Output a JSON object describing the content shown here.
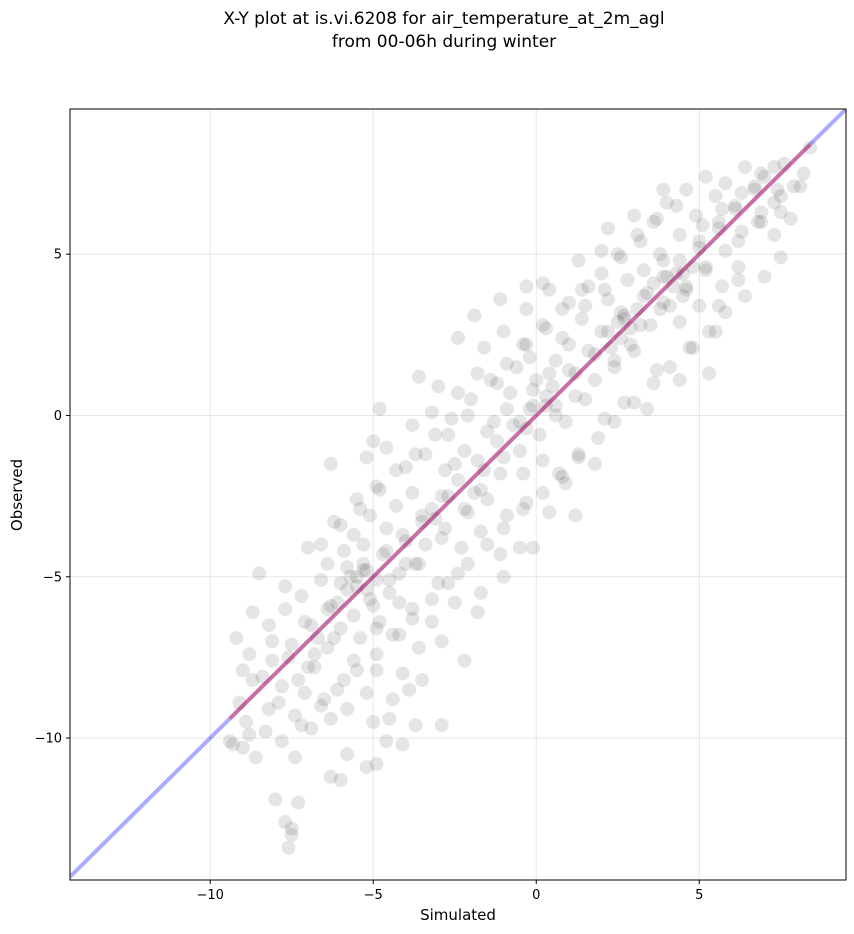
{
  "chart_data": {
    "type": "scatter",
    "title": "X-Y plot at is.vi.6208 for air_temperature_at_2m_agl",
    "subtitle": "from 00-06h during winter",
    "xlabel": "Simulated",
    "ylabel": "Observed",
    "xlim": [
      -14.3,
      9.5
    ],
    "ylim": [
      -14.4,
      9.5
    ],
    "xticks": [
      -10,
      -5,
      0,
      5
    ],
    "yticks": [
      -10,
      -5,
      0,
      5
    ],
    "xtick_labels": [
      "−10",
      "−5",
      "0",
      "5"
    ],
    "ytick_labels": [
      "−10",
      "−5",
      "0",
      "5"
    ],
    "grid": true,
    "reference_line": {
      "slope": 1,
      "intercept": 0,
      "color": "#0000ff"
    },
    "fit_line": {
      "slope": 1.0,
      "intercept": 0.0,
      "x_range": [
        -9.4,
        8.4
      ],
      "color": "#ff0000"
    },
    "point_color": "#000000",
    "points": [
      [
        -7.6,
        -13.4
      ],
      [
        -7.5,
        -13.0
      ],
      [
        -7.7,
        -12.6
      ],
      [
        -7.3,
        -12.0
      ],
      [
        -8.0,
        -11.9
      ],
      [
        -7.5,
        -12.8
      ],
      [
        -6.3,
        -11.2
      ],
      [
        -6.0,
        -11.3
      ],
      [
        -5.2,
        -10.9
      ],
      [
        -4.9,
        -10.8
      ],
      [
        -5.8,
        -10.5
      ],
      [
        -7.4,
        -10.6
      ],
      [
        -8.6,
        -10.6
      ],
      [
        -9.3,
        -10.2
      ],
      [
        -8.8,
        -9.9
      ],
      [
        -4.6,
        -10.1
      ],
      [
        -4.1,
        -10.2
      ],
      [
        -3.7,
        -9.6
      ],
      [
        -2.9,
        -9.6
      ],
      [
        -8.9,
        -9.5
      ],
      [
        -9.1,
        -8.9
      ],
      [
        -8.2,
        -9.1
      ],
      [
        -7.4,
        -9.3
      ],
      [
        -6.9,
        -9.7
      ],
      [
        -6.3,
        -9.4
      ],
      [
        -5.8,
        -9.1
      ],
      [
        -5.0,
        -9.5
      ],
      [
        -4.5,
        -9.4
      ],
      [
        -9.0,
        -7.9
      ],
      [
        -8.4,
        -8.1
      ],
      [
        -7.8,
        -8.4
      ],
      [
        -7.1,
        -8.6
      ],
      [
        -6.5,
        -8.8
      ],
      [
        -5.9,
        -8.2
      ],
      [
        -5.2,
        -8.6
      ],
      [
        -4.4,
        -8.8
      ],
      [
        -3.9,
        -8.5
      ],
      [
        -9.2,
        -6.9
      ],
      [
        -8.8,
        -7.4
      ],
      [
        -8.1,
        -7.0
      ],
      [
        -7.6,
        -7.5
      ],
      [
        -7.0,
        -7.8
      ],
      [
        -6.4,
        -7.2
      ],
      [
        -5.6,
        -7.6
      ],
      [
        -4.9,
        -7.9
      ],
      [
        -4.1,
        -8.0
      ],
      [
        -3.5,
        -8.2
      ],
      [
        -8.7,
        -6.1
      ],
      [
        -8.2,
        -6.5
      ],
      [
        -7.7,
        -6.0
      ],
      [
        -7.1,
        -6.4
      ],
      [
        -6.7,
        -6.9
      ],
      [
        -6.0,
        -6.6
      ],
      [
        -5.4,
        -6.9
      ],
      [
        -4.8,
        -6.4
      ],
      [
        -4.2,
        -6.8
      ],
      [
        -3.6,
        -7.2
      ],
      [
        -2.9,
        -7.0
      ],
      [
        -2.2,
        -7.6
      ],
      [
        -8.5,
        -4.9
      ],
      [
        -7.7,
        -5.3
      ],
      [
        -7.2,
        -5.6
      ],
      [
        -6.6,
        -5.1
      ],
      [
        -6.1,
        -5.8
      ],
      [
        -5.5,
        -5.3
      ],
      [
        -5.0,
        -5.9
      ],
      [
        -4.5,
        -5.5
      ],
      [
        -3.8,
        -6.0
      ],
      [
        -3.2,
        -6.4
      ],
      [
        -2.5,
        -5.8
      ],
      [
        -1.8,
        -6.1
      ],
      [
        -7.0,
        -4.1
      ],
      [
        -6.4,
        -4.6
      ],
      [
        -5.9,
        -4.2
      ],
      [
        -5.3,
        -4.8
      ],
      [
        -4.7,
        -4.3
      ],
      [
        -4.2,
        -4.9
      ],
      [
        -3.6,
        -4.6
      ],
      [
        -3.0,
        -5.2
      ],
      [
        -2.4,
        -4.9
      ],
      [
        -1.7,
        -5.5
      ],
      [
        -1.0,
        -5.0
      ],
      [
        -6.2,
        -3.3
      ],
      [
        -5.6,
        -3.7
      ],
      [
        -5.1,
        -3.1
      ],
      [
        -4.6,
        -3.5
      ],
      [
        -4.0,
        -3.9
      ],
      [
        -3.5,
        -3.3
      ],
      [
        -2.9,
        -3.8
      ],
      [
        -2.3,
        -4.1
      ],
      [
        -1.7,
        -3.6
      ],
      [
        -1.1,
        -4.3
      ],
      [
        -0.5,
        -4.1
      ],
      [
        -0.1,
        -4.1
      ],
      [
        -5.5,
        -2.6
      ],
      [
        -4.9,
        -2.2
      ],
      [
        -4.3,
        -2.8
      ],
      [
        -3.8,
        -2.4
      ],
      [
        -3.2,
        -2.9
      ],
      [
        -2.7,
        -2.5
      ],
      [
        -2.1,
        -3.0
      ],
      [
        -1.5,
        -2.6
      ],
      [
        -0.9,
        -3.1
      ],
      [
        -0.3,
        -2.7
      ],
      [
        0.4,
        -3.0
      ],
      [
        0.9,
        -2.1
      ],
      [
        1.2,
        -3.1
      ],
      [
        -6.3,
        -1.5
      ],
      [
        -5.2,
        -1.3
      ],
      [
        -4.6,
        -1.0
      ],
      [
        -4.0,
        -1.6
      ],
      [
        -3.4,
        -1.2
      ],
      [
        -2.8,
        -1.7
      ],
      [
        -2.2,
        -1.1
      ],
      [
        -1.6,
        -1.7
      ],
      [
        -1.0,
        -1.3
      ],
      [
        -0.4,
        -1.8
      ],
      [
        0.2,
        -1.4
      ],
      [
        0.8,
        -1.9
      ],
      [
        1.3,
        -1.2
      ],
      [
        1.8,
        -1.5
      ],
      [
        -5.0,
        -0.8
      ],
      [
        -3.8,
        -0.3
      ],
      [
        -3.2,
        0.1
      ],
      [
        -2.7,
        -0.6
      ],
      [
        -2.1,
        0.0
      ],
      [
        -1.5,
        -0.5
      ],
      [
        -0.9,
        0.2
      ],
      [
        -0.3,
        -0.4
      ],
      [
        0.3,
        0.3
      ],
      [
        0.9,
        -0.2
      ],
      [
        1.5,
        0.5
      ],
      [
        2.1,
        -0.1
      ],
      [
        2.7,
        0.4
      ],
      [
        3.4,
        0.2
      ],
      [
        -4.8,
        0.2
      ],
      [
        -3.6,
        1.2
      ],
      [
        -3.0,
        0.9
      ],
      [
        -2.4,
        0.7
      ],
      [
        -1.8,
        1.3
      ],
      [
        -1.2,
        1.0
      ],
      [
        -0.6,
        1.5
      ],
      [
        0.0,
        1.1
      ],
      [
        0.6,
        1.7
      ],
      [
        1.2,
        1.3
      ],
      [
        1.8,
        1.9
      ],
      [
        2.4,
        1.5
      ],
      [
        3.0,
        2.0
      ],
      [
        3.7,
        1.4
      ],
      [
        4.4,
        1.1
      ],
      [
        -2.4,
        2.4
      ],
      [
        -1.6,
        2.1
      ],
      [
        -1.0,
        2.6
      ],
      [
        -0.4,
        2.2
      ],
      [
        0.2,
        2.8
      ],
      [
        0.8,
        2.4
      ],
      [
        1.4,
        3.0
      ],
      [
        2.0,
        2.6
      ],
      [
        2.6,
        3.2
      ],
      [
        3.2,
        2.8
      ],
      [
        3.8,
        3.3
      ],
      [
        4.4,
        2.9
      ],
      [
        5.0,
        3.4
      ],
      [
        5.5,
        2.6
      ],
      [
        -1.9,
        3.1
      ],
      [
        -1.1,
        3.6
      ],
      [
        -0.3,
        3.3
      ],
      [
        0.4,
        3.9
      ],
      [
        1.0,
        3.5
      ],
      [
        1.6,
        4.0
      ],
      [
        2.2,
        3.6
      ],
      [
        2.8,
        4.2
      ],
      [
        3.4,
        3.8
      ],
      [
        4.0,
        4.3
      ],
      [
        4.6,
        3.9
      ],
      [
        5.2,
        4.5
      ],
      [
        5.7,
        4.0
      ],
      [
        6.2,
        4.6
      ],
      [
        -0.3,
        4.0
      ],
      [
        0.2,
        4.1
      ],
      [
        1.3,
        4.8
      ],
      [
        2.0,
        5.1
      ],
      [
        2.6,
        4.9
      ],
      [
        3.2,
        5.4
      ],
      [
        3.8,
        5.0
      ],
      [
        4.4,
        5.6
      ],
      [
        5.0,
        5.2
      ],
      [
        5.6,
        5.8
      ],
      [
        6.2,
        5.4
      ],
      [
        6.8,
        6.0
      ],
      [
        7.3,
        5.6
      ],
      [
        2.2,
        5.8
      ],
      [
        3.0,
        6.2
      ],
      [
        3.6,
        6.0
      ],
      [
        4.3,
        6.5
      ],
      [
        4.9,
        6.2
      ],
      [
        5.5,
        6.8
      ],
      [
        6.1,
        6.4
      ],
      [
        6.7,
        7.0
      ],
      [
        7.3,
        6.6
      ],
      [
        7.9,
        7.1
      ],
      [
        4.0,
        6.6
      ],
      [
        3.9,
        7.0
      ],
      [
        4.6,
        7.0
      ],
      [
        5.2,
        7.4
      ],
      [
        5.8,
        7.2
      ],
      [
        6.4,
        7.7
      ],
      [
        7.0,
        7.4
      ],
      [
        7.6,
        7.8
      ],
      [
        8.1,
        7.1
      ],
      [
        8.4,
        8.3
      ],
      [
        8.2,
        7.5
      ],
      [
        7.5,
        6.3
      ],
      [
        6.9,
        6.0
      ],
      [
        6.2,
        4.2
      ],
      [
        5.6,
        3.4
      ],
      [
        5.3,
        1.3
      ],
      [
        4.8,
        2.1
      ],
      [
        -9.4,
        -10.1
      ],
      [
        -9.0,
        -10.3
      ],
      [
        -8.3,
        -9.8
      ],
      [
        -7.9,
        -8.9
      ],
      [
        -7.3,
        -8.2
      ],
      [
        -6.8,
        -7.4
      ],
      [
        -6.2,
        -6.9
      ],
      [
        -5.6,
        -6.2
      ],
      [
        -5.1,
        -5.7
      ],
      [
        -4.5,
        -5.1
      ],
      [
        -4.0,
        -4.6
      ],
      [
        -3.4,
        -4.0
      ],
      [
        -2.8,
        -3.5
      ],
      [
        -2.2,
        -2.9
      ],
      [
        -1.7,
        -2.3
      ],
      [
        -1.1,
        -1.8
      ],
      [
        -0.5,
        -1.1
      ],
      [
        0.1,
        -0.6
      ],
      [
        0.6,
        0.0
      ],
      [
        1.2,
        0.6
      ],
      [
        1.8,
        1.1
      ],
      [
        2.4,
        1.7
      ],
      [
        2.9,
        2.2
      ],
      [
        3.5,
        2.8
      ],
      [
        4.1,
        3.4
      ],
      [
        4.6,
        4.0
      ],
      [
        5.2,
        4.6
      ],
      [
        5.8,
        5.1
      ],
      [
        6.3,
        5.7
      ],
      [
        6.9,
        6.3
      ],
      [
        7.5,
        6.8
      ],
      [
        -8.7,
        -8.2
      ],
      [
        -8.1,
        -7.6
      ],
      [
        -7.5,
        -7.1
      ],
      [
        -6.9,
        -6.5
      ],
      [
        -6.3,
        -5.9
      ],
      [
        -5.8,
        -5.4
      ],
      [
        -5.2,
        -4.8
      ],
      [
        -4.6,
        -4.2
      ],
      [
        -4.1,
        -3.7
      ],
      [
        -3.5,
        -3.1
      ],
      [
        -2.9,
        -2.5
      ],
      [
        -2.4,
        -2.0
      ],
      [
        -1.8,
        -1.4
      ],
      [
        -1.2,
        -0.8
      ],
      [
        -0.7,
        -0.3
      ],
      [
        -0.1,
        0.3
      ],
      [
        0.5,
        0.9
      ],
      [
        1.0,
        1.4
      ],
      [
        1.6,
        2.0
      ],
      [
        2.2,
        2.6
      ],
      [
        2.7,
        3.1
      ],
      [
        3.3,
        3.7
      ],
      [
        3.9,
        4.3
      ],
      [
        4.4,
        4.8
      ],
      [
        5.0,
        5.4
      ],
      [
        5.6,
        6.0
      ],
      [
        6.1,
        6.5
      ],
      [
        6.7,
        7.1
      ],
      [
        7.3,
        7.7
      ],
      [
        -6.6,
        -4.0
      ],
      [
        -6.0,
        -3.4
      ],
      [
        -5.4,
        -2.9
      ],
      [
        -4.8,
        -2.3
      ],
      [
        -4.3,
        -1.7
      ],
      [
        -3.7,
        -1.2
      ],
      [
        -3.1,
        -0.6
      ],
      [
        -2.6,
        -0.1
      ],
      [
        -2.0,
        0.5
      ],
      [
        -1.4,
        1.1
      ],
      [
        -0.9,
        1.6
      ],
      [
        -0.3,
        2.2
      ],
      [
        0.3,
        2.7
      ],
      [
        0.8,
        3.3
      ],
      [
        1.4,
        3.9
      ],
      [
        2.0,
        4.4
      ],
      [
        2.5,
        5.0
      ],
      [
        3.1,
        5.6
      ],
      [
        3.7,
        6.1
      ],
      [
        -7.8,
        -10.1
      ],
      [
        -7.2,
        -9.6
      ],
      [
        -6.6,
        -9.0
      ],
      [
        -6.1,
        -8.5
      ],
      [
        -5.5,
        -7.9
      ],
      [
        -4.9,
        -7.4
      ],
      [
        -4.4,
        -6.8
      ],
      [
        -3.8,
        -6.3
      ],
      [
        -3.2,
        -5.7
      ],
      [
        -2.7,
        -5.2
      ],
      [
        -2.1,
        -4.6
      ],
      [
        -1.5,
        -4.0
      ],
      [
        -1.0,
        -3.5
      ],
      [
        -0.4,
        -2.9
      ],
      [
        0.2,
        -2.4
      ],
      [
        0.7,
        -1.8
      ],
      [
        1.3,
        -1.3
      ],
      [
        1.9,
        -0.7
      ],
      [
        2.4,
        -0.2
      ],
      [
        3.0,
        0.4
      ],
      [
        3.6,
        1.0
      ],
      [
        4.1,
        1.5
      ],
      [
        4.7,
        2.1
      ],
      [
        5.3,
        2.6
      ],
      [
        5.8,
        3.2
      ],
      [
        6.4,
        3.7
      ],
      [
        7.0,
        4.3
      ],
      [
        7.5,
        4.9
      ],
      [
        -6.8,
        -7.8
      ],
      [
        -6.4,
        -6.0
      ],
      [
        -5.7,
        -5.0
      ],
      [
        -5.3,
        -4.0
      ],
      [
        -4.9,
        -6.6
      ],
      [
        -4.2,
        -5.8
      ],
      [
        -3.7,
        -4.6
      ],
      [
        -3.1,
        -3.2
      ],
      [
        -2.5,
        -1.5
      ],
      [
        -1.9,
        -2.4
      ],
      [
        -1.3,
        -0.2
      ],
      [
        -0.8,
        0.7
      ],
      [
        -0.2,
        1.8
      ],
      [
        0.4,
        1.3
      ],
      [
        1.0,
        2.2
      ],
      [
        1.5,
        3.4
      ],
      [
        2.1,
        3.9
      ],
      [
        2.7,
        3.0
      ],
      [
        3.3,
        4.5
      ],
      [
        3.9,
        4.8
      ],
      [
        4.5,
        4.4
      ],
      [
        5.1,
        5.9
      ],
      [
        5.7,
        6.4
      ],
      [
        6.3,
        6.9
      ],
      [
        6.9,
        7.5
      ],
      [
        7.4,
        7.0
      ],
      [
        7.8,
        6.1
      ],
      [
        4.2,
        4.0
      ],
      [
        4.5,
        3.7
      ],
      [
        3.9,
        3.5
      ],
      [
        4.8,
        4.6
      ],
      [
        4.3,
        4.4
      ],
      [
        3.6,
        4.1
      ],
      [
        -5.5,
        -5.0
      ],
      [
        -5.2,
        -5.4
      ],
      [
        -5.8,
        -4.7
      ],
      [
        -6.0,
        -5.2
      ],
      [
        -4.9,
        -5.1
      ],
      [
        -5.3,
        -4.6
      ],
      [
        -0.2,
        0.2
      ],
      [
        0.3,
        0.6
      ],
      [
        -0.5,
        -0.2
      ],
      [
        0.6,
        0.3
      ],
      [
        -0.1,
        0.8
      ],
      [
        2.6,
        2.4
      ],
      [
        2.9,
        2.7
      ],
      [
        2.3,
        2.1
      ],
      [
        3.1,
        3.3
      ],
      [
        2.5,
        2.9
      ]
    ]
  }
}
